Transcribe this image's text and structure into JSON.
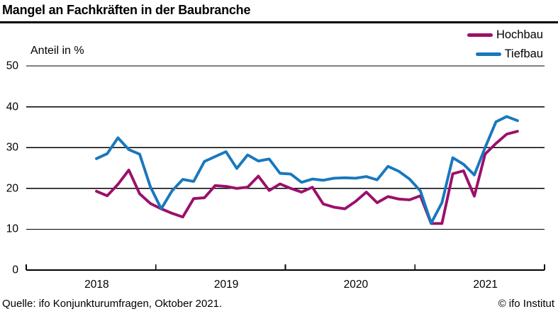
{
  "title": "Mangel an Fachkräften in der Baubranche",
  "y_axis_label": "Anteil in %",
  "legend": [
    {
      "label": "Hochbau",
      "color": "#9b106a"
    },
    {
      "label": "Tiefbau",
      "color": "#1878bd"
    }
  ],
  "footer": {
    "source": "Quelle: ifo Konjunkturumfragen, Oktober 2021.",
    "copyright": "© ifo Institut"
  },
  "colors": {
    "grid": "#000000",
    "axis": "#000000",
    "text": "#000000"
  },
  "chart_data": {
    "type": "line",
    "title": "Mangel an Fachkräften in der Baubranche",
    "ylabel": "Anteil in %",
    "ylim": [
      0,
      50
    ],
    "y_ticks": [
      0,
      10,
      20,
      30,
      40,
      50
    ],
    "x_tick_labels": [
      "2018",
      "2019",
      "2020",
      "2021"
    ],
    "x_range_months": [
      "2018-01",
      "2021-12"
    ],
    "grid": "horizontal",
    "legend_position": "top-right",
    "x": [
      "2018-07",
      "2018-08",
      "2018-09",
      "2018-10",
      "2018-11",
      "2018-12",
      "2019-01",
      "2019-02",
      "2019-03",
      "2019-04",
      "2019-05",
      "2019-06",
      "2019-07",
      "2019-08",
      "2019-09",
      "2019-10",
      "2019-11",
      "2019-12",
      "2020-01",
      "2020-02",
      "2020-03",
      "2020-04",
      "2020-05",
      "2020-06",
      "2020-07",
      "2020-08",
      "2020-09",
      "2020-10",
      "2020-11",
      "2020-12",
      "2021-01",
      "2021-02",
      "2021-03",
      "2021-04",
      "2021-05",
      "2021-06",
      "2021-07",
      "2021-08",
      "2021-09",
      "2021-10"
    ],
    "series": [
      {
        "name": "Hochbau",
        "color": "#9b106a",
        "values": [
          19.3,
          18.2,
          21.0,
          24.5,
          18.7,
          16.3,
          15.0,
          13.9,
          13.0,
          17.5,
          17.7,
          20.7,
          20.5,
          20.0,
          20.3,
          23.0,
          19.5,
          21.1,
          20.0,
          19.1,
          20.3,
          16.2,
          15.4,
          15.0,
          16.8,
          19.1,
          16.5,
          18.0,
          17.4,
          17.2,
          18.2,
          11.4,
          11.4,
          23.6,
          24.3,
          18.1,
          28.4,
          31.0,
          33.3,
          34.0
        ]
      },
      {
        "name": "Tiefbau",
        "color": "#1878bd",
        "values": [
          27.3,
          28.5,
          32.4,
          29.5,
          28.4,
          20.4,
          15.0,
          19.4,
          22.2,
          21.7,
          26.6,
          27.8,
          29.0,
          24.9,
          28.2,
          26.7,
          27.2,
          23.7,
          23.5,
          21.5,
          22.3,
          22.0,
          22.5,
          22.6,
          22.5,
          22.9,
          22.1,
          25.4,
          24.2,
          22.3,
          19.4,
          11.5,
          16.5,
          27.5,
          25.9,
          23.3,
          30.0,
          36.3,
          37.6,
          36.6
        ]
      }
    ]
  }
}
